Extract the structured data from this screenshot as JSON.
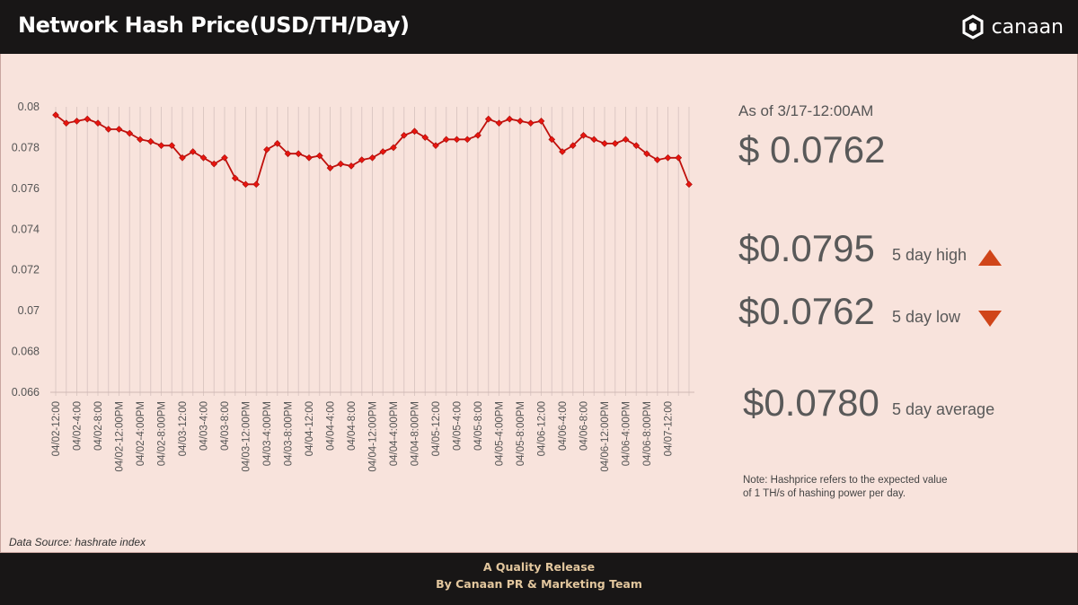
{
  "header": {
    "title": "Network Hash Price(USD/TH/Day)",
    "logo_text": "canaan"
  },
  "stats": {
    "as_of": "As of 3/17-12:00AM",
    "current": "$ 0.0762",
    "high_value": "$0.0795",
    "high_label": "5 day high",
    "low_value": "$0.0762",
    "low_label": "5 day low",
    "avg_value": "$0.0780",
    "avg_label": "5 day average",
    "note": "Note: Hashprice refers to the expected value of 1 TH/s of hashing power per day."
  },
  "source": "Data Source: hashrate index",
  "footer": {
    "line1": "A Quality Release",
    "line2": "By Canaan PR & Marketing Team"
  },
  "colors": {
    "line": "#c0100c",
    "marker": "#e8150f",
    "accent_triangle": "#d04519",
    "header_bg": "#181616",
    "footer_text": "#e3c79e"
  },
  "chart_data": {
    "type": "line",
    "ylim": [
      0.066,
      0.08
    ],
    "yticks": [
      "0.08",
      "0.078",
      "0.076",
      "0.074",
      "0.072",
      "0.07",
      "0.068",
      "0.066"
    ],
    "x_tick_labels": [
      "04/02-12:00",
      "04/02-4:00",
      "04/02-8:00",
      "04/02-12:00PM",
      "04/02-4:00PM",
      "04/02-8:00PM",
      "04/03-12:00",
      "04/03-4:00",
      "04/03-8:00",
      "04/03-12:00PM",
      "04/03-4:00PM",
      "04/03-8:00PM",
      "04/04-12:00",
      "04/04-4:00",
      "04/04-8:00",
      "04/04-12:00PM",
      "04/04-4:00PM",
      "04/04-8:00PM",
      "04/05-12:00",
      "04/05-4:00",
      "04/05-8:00",
      "04/05-4:00PM",
      "04/05-8:00PM",
      "04/06-12:00",
      "04/06-4:00",
      "04/06-8:00",
      "04/06-12:00PM",
      "04/06-4:00PM",
      "04/06-8:00PM",
      "04/07-12:00"
    ],
    "series": [
      {
        "values": [
          0.0796,
          0.0792,
          0.0793,
          0.0794,
          0.0792,
          0.0789,
          0.0789,
          0.0787,
          0.0784,
          0.0783,
          0.0781,
          0.0781,
          0.0775,
          0.0778,
          0.0775,
          0.0772,
          0.0775,
          0.0765,
          0.0762,
          0.0762,
          0.0779,
          0.0782,
          0.0777,
          0.0777,
          0.0775,
          0.0776,
          0.077,
          0.0772,
          0.0771,
          0.0774,
          0.0775,
          0.0778,
          0.078,
          0.0786,
          0.0788,
          0.0785,
          0.0781,
          0.0784,
          0.0784,
          0.0784,
          0.0786,
          0.0794,
          0.0792,
          0.0794,
          0.0793,
          0.0792,
          0.0793,
          0.0784,
          0.0778,
          0.0781,
          0.0786,
          0.0784,
          0.0782,
          0.0782,
          0.0784,
          0.0781,
          0.0777,
          0.0774,
          0.0775,
          0.0775,
          0.0762
        ]
      }
    ]
  }
}
